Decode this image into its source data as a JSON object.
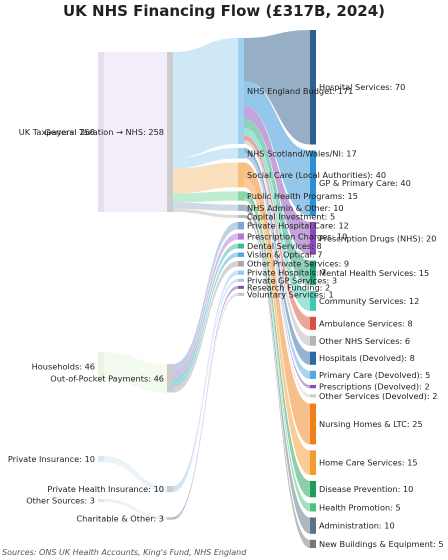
{
  "title": "UK NHS Financing Flow (£317B, 2024)",
  "sources": "Sources: ONS UK Health Accounts, King's Fund, NHS England",
  "nodes": [
    {
      "id": "uk_taxpayers",
      "label": "UK Taxpayers: 258",
      "value": 258,
      "color": "#e8def2",
      "label_side": "left"
    },
    {
      "id": "households",
      "label": "Households: 46",
      "value": 46,
      "color": "#eaf5e2",
      "label_side": "left"
    },
    {
      "id": "private_insurance",
      "label": "Private Insurance: 10",
      "value": 10,
      "color": "#dbe7f3",
      "label_side": "left"
    },
    {
      "id": "other_sources",
      "label": "Other Sources: 3",
      "value": 3,
      "color": "#dbe7f3",
      "label_side": "left"
    },
    {
      "id": "general_taxation",
      "label": "General Taxation → NHS: 258",
      "value": 258,
      "color": "#cccccc",
      "label_side": "left"
    },
    {
      "id": "out_of_pocket",
      "label": "Out-of-Pocket Payments: 46",
      "value": 46,
      "color": "#cccccc",
      "label_side": "left"
    },
    {
      "id": "private_health_insurance",
      "label": "Private Health Insurance: 10",
      "value": 10,
      "color": "#cccccc",
      "label_side": "left"
    },
    {
      "id": "charitable",
      "label": "Charitable & Other: 3",
      "value": 3,
      "color": "#cccccc",
      "label_side": "left"
    },
    {
      "id": "nhs_england",
      "label": "NHS England Budget: 171",
      "value": 171,
      "color": "#9fd1ef",
      "label_side": "left"
    },
    {
      "id": "nhs_devolved",
      "label": "NHS Scotland/Wales/NI: 17",
      "value": 17,
      "color": "#9fd1ef",
      "label_side": "left"
    },
    {
      "id": "social_care",
      "label": "Social Care (Local Authorities): 40",
      "value": 40,
      "color": "#f5c27c",
      "label_side": "left"
    },
    {
      "id": "public_health",
      "label": "Public Health Programs: 15",
      "value": 15,
      "color": "#84d9a8",
      "label_side": "left"
    },
    {
      "id": "nhs_admin",
      "label": "NHS Admin & Other: 10",
      "value": 10,
      "color": "#9fb7c9",
      "label_side": "left"
    },
    {
      "id": "capital_investment",
      "label": "Capital Investment: 5",
      "value": 5,
      "color": "#bbbbbb",
      "label_side": "left"
    },
    {
      "id": "hospital_services",
      "label": "Hospital Services: 70",
      "value": 70,
      "color": "#2f5f8c",
      "label_side": "right"
    },
    {
      "id": "gp_primary",
      "label": "GP & Primary Care: 40",
      "value": 40,
      "color": "#2c8fd6",
      "label_side": "right"
    },
    {
      "id": "prescription_drugs",
      "label": "Prescription Drugs (NHS): 20",
      "value": 20,
      "color": "#8a4bb8",
      "label_side": "right"
    },
    {
      "id": "mental_health",
      "label": "Mental Health Services: 15",
      "value": 15,
      "color": "#1ea57a",
      "label_side": "right"
    },
    {
      "id": "community_services",
      "label": "Community Services: 12",
      "value": 12,
      "color": "#3fc9b3",
      "label_side": "right"
    },
    {
      "id": "ambulance",
      "label": "Ambulance Services: 8",
      "value": 8,
      "color": "#d9503c",
      "label_side": "right"
    },
    {
      "id": "other_nhs",
      "label": "Other NHS Services: 6",
      "value": 6,
      "color": "#b5b5b5",
      "label_side": "right"
    },
    {
      "id": "hospitals_devolved",
      "label": "Hospitals (Devolved): 8",
      "value": 8,
      "color": "#2a6aa6",
      "label_side": "right"
    },
    {
      "id": "primary_devolved",
      "label": "Primary Care (Devolved): 5",
      "value": 5,
      "color": "#56a8e0",
      "label_side": "right"
    },
    {
      "id": "prescriptions_devolved",
      "label": "Prescriptions (Devolved): 2",
      "value": 2,
      "color": "#8a4bb8",
      "label_side": "right"
    },
    {
      "id": "other_devolved",
      "label": "Other Services (Devolved): 2",
      "value": 2,
      "color": "#cfcfcf",
      "label_side": "right"
    },
    {
      "id": "nursing_homes",
      "label": "Nursing Homes & LTC: 25",
      "value": 25,
      "color": "#f07f1a",
      "label_side": "right"
    },
    {
      "id": "home_care",
      "label": "Home Care Services: 15",
      "value": 15,
      "color": "#f59a2e",
      "label_side": "right"
    },
    {
      "id": "disease_prevention",
      "label": "Disease Prevention: 10",
      "value": 10,
      "color": "#1f9e55",
      "label_side": "right"
    },
    {
      "id": "health_promotion",
      "label": "Health Promotion: 5",
      "value": 5,
      "color": "#4cc27a",
      "label_side": "right"
    },
    {
      "id": "administration",
      "label": "Administration: 10",
      "value": 10,
      "color": "#5a7486",
      "label_side": "right"
    },
    {
      "id": "new_buildings",
      "label": "New Buildings & Equipment: 5",
      "value": 5,
      "color": "#777777",
      "label_side": "right"
    },
    {
      "id": "private_hospital_care",
      "label": "Private Hospital Care: 12",
      "value": 12,
      "color": "#7ea6d0",
      "label_side": "right"
    },
    {
      "id": "prescription_charges",
      "label": "Prescription Charges: 10",
      "value": 10,
      "color": "#b07cd0",
      "label_side": "right"
    },
    {
      "id": "dental_services",
      "label": "Dental Services: 8",
      "value": 8,
      "color": "#3ab8a0",
      "label_side": "right"
    },
    {
      "id": "vision_optical",
      "label": "Vision & Optical: 7",
      "value": 7,
      "color": "#4da6dc",
      "label_side": "right"
    },
    {
      "id": "other_private",
      "label": "Other Private Services: 9",
      "value": 9,
      "color": "#aaaaaa",
      "label_side": "right"
    },
    {
      "id": "private_hospitals",
      "label": "Private Hospitals: 7",
      "value": 7,
      "color": "#9cc8ee",
      "label_side": "right"
    },
    {
      "id": "private_gp",
      "label": "Private GP Services: 3",
      "value": 3,
      "color": "#9cc8ee",
      "label_side": "right"
    },
    {
      "id": "research_funding",
      "label": "Research Funding: 2",
      "value": 2,
      "color": "#8a4bb8",
      "label_side": "right"
    },
    {
      "id": "voluntary_services",
      "label": "Voluntary Services: 1",
      "value": 1,
      "color": "#c4c4c4",
      "label_side": "right"
    }
  ],
  "links": [
    {
      "source": "uk_taxpayers",
      "target": "general_taxation",
      "value": 258
    },
    {
      "source": "households",
      "target": "out_of_pocket",
      "value": 46
    },
    {
      "source": "private_insurance",
      "target": "private_health_insurance",
      "value": 10
    },
    {
      "source": "other_sources",
      "target": "charitable",
      "value": 3
    },
    {
      "source": "general_taxation",
      "target": "nhs_england",
      "value": 171
    },
    {
      "source": "general_taxation",
      "target": "nhs_devolved",
      "value": 17
    },
    {
      "source": "general_taxation",
      "target": "social_care",
      "value": 40
    },
    {
      "source": "general_taxation",
      "target": "public_health",
      "value": 15
    },
    {
      "source": "general_taxation",
      "target": "nhs_admin",
      "value": 10
    },
    {
      "source": "general_taxation",
      "target": "capital_investment",
      "value": 5
    },
    {
      "source": "nhs_england",
      "target": "hospital_services",
      "value": 70
    },
    {
      "source": "nhs_england",
      "target": "gp_primary",
      "value": 40
    },
    {
      "source": "nhs_england",
      "target": "prescription_drugs",
      "value": 20
    },
    {
      "source": "nhs_england",
      "target": "mental_health",
      "value": 15
    },
    {
      "source": "nhs_england",
      "target": "community_services",
      "value": 12
    },
    {
      "source": "nhs_england",
      "target": "ambulance",
      "value": 8
    },
    {
      "source": "nhs_england",
      "target": "other_nhs",
      "value": 6
    },
    {
      "source": "nhs_devolved",
      "target": "hospitals_devolved",
      "value": 8
    },
    {
      "source": "nhs_devolved",
      "target": "primary_devolved",
      "value": 5
    },
    {
      "source": "nhs_devolved",
      "target": "prescriptions_devolved",
      "value": 2
    },
    {
      "source": "nhs_devolved",
      "target": "other_devolved",
      "value": 2
    },
    {
      "source": "social_care",
      "target": "nursing_homes",
      "value": 25
    },
    {
      "source": "social_care",
      "target": "home_care",
      "value": 15
    },
    {
      "source": "public_health",
      "target": "disease_prevention",
      "value": 10
    },
    {
      "source": "public_health",
      "target": "health_promotion",
      "value": 5
    },
    {
      "source": "nhs_admin",
      "target": "administration",
      "value": 10
    },
    {
      "source": "capital_investment",
      "target": "new_buildings",
      "value": 5
    },
    {
      "source": "out_of_pocket",
      "target": "private_hospital_care",
      "value": 12
    },
    {
      "source": "out_of_pocket",
      "target": "prescription_charges",
      "value": 10
    },
    {
      "source": "out_of_pocket",
      "target": "dental_services",
      "value": 8
    },
    {
      "source": "out_of_pocket",
      "target": "vision_optical",
      "value": 7
    },
    {
      "source": "out_of_pocket",
      "target": "other_private",
      "value": 9
    },
    {
      "source": "private_health_insurance",
      "target": "private_hospitals",
      "value": 7
    },
    {
      "source": "private_health_insurance",
      "target": "private_gp",
      "value": 3
    },
    {
      "source": "charitable",
      "target": "research_funding",
      "value": 2
    },
    {
      "source": "charitable",
      "target": "voluntary_services",
      "value": 1
    }
  ]
}
